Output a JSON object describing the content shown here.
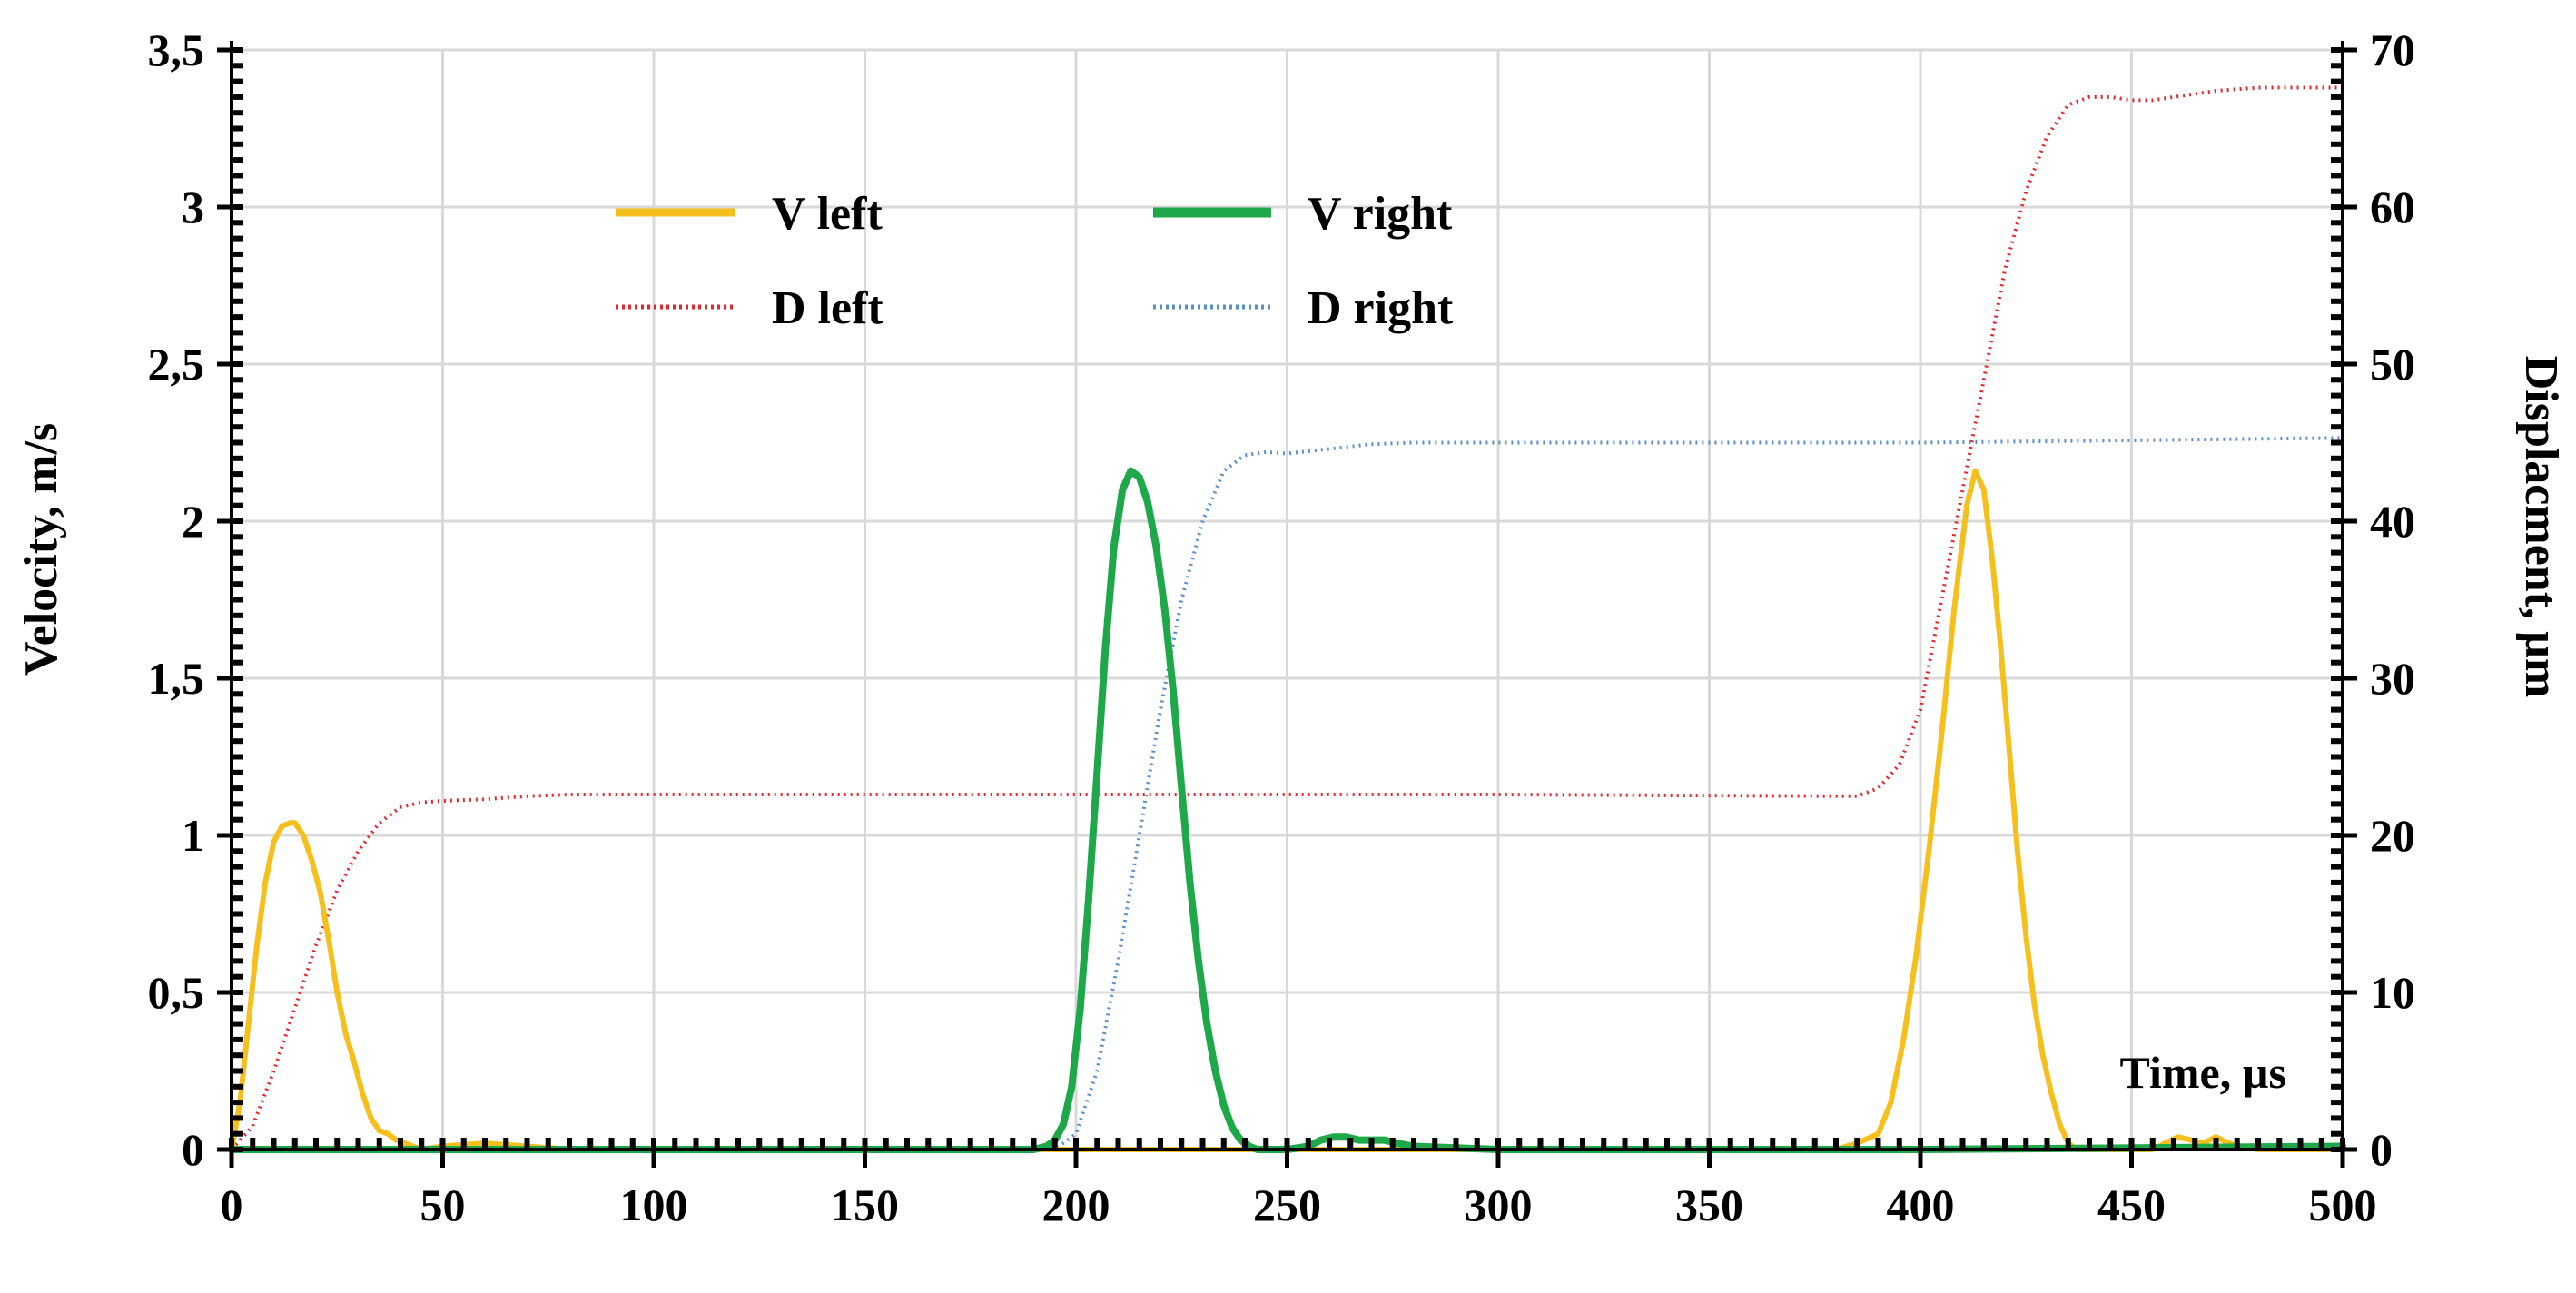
{
  "chart_data": {
    "type": "line",
    "title": "",
    "xlabel": "",
    "ylabel": "Velocity, m/s",
    "y2label": "Displacment, µm",
    "annotation": "Time, µs",
    "xlim": [
      0,
      500
    ],
    "ylim": [
      0,
      3.5
    ],
    "y2lim": [
      0,
      70
    ],
    "x_ticks": [
      0,
      50,
      100,
      150,
      200,
      250,
      300,
      350,
      400,
      450,
      500
    ],
    "x_tick_labels": [
      "0",
      "50",
      "100",
      "150",
      "200",
      "250",
      "300",
      "350",
      "400",
      "450",
      "500"
    ],
    "y_ticks": [
      0,
      0.5,
      1,
      1.5,
      2,
      2.5,
      3,
      3.5
    ],
    "y_tick_labels": [
      "0",
      "0,5",
      "1",
      "1,5",
      "2",
      "2,5",
      "3",
      "3,5"
    ],
    "y2_ticks": [
      0,
      10,
      20,
      30,
      40,
      50,
      60,
      70
    ],
    "y2_tick_labels": [
      "0",
      "10",
      "20",
      "30",
      "40",
      "50",
      "60",
      "70"
    ],
    "grid": true,
    "legend_position": "top-left",
    "series": [
      {
        "name": "V left",
        "axis": "left",
        "style": "solid",
        "color": "#f5c01e",
        "x": [
          0,
          2,
          4,
          6,
          8,
          10,
          12,
          14,
          15,
          17,
          19,
          21,
          23,
          25,
          27,
          29,
          31,
          33,
          35,
          37,
          39,
          41,
          43,
          45,
          50,
          60,
          70,
          80,
          90,
          100,
          200,
          300,
          380,
          385,
          390,
          393,
          396,
          399,
          402,
          405,
          408,
          411,
          413,
          415,
          417,
          419,
          421,
          423,
          425,
          427,
          429,
          431,
          433,
          435,
          437,
          440,
          455,
          458,
          461,
          464,
          467,
          470,
          473,
          476,
          480,
          500
        ],
        "y": [
          0,
          0.15,
          0.4,
          0.65,
          0.85,
          0.98,
          1.03,
          1.04,
          1.04,
          1.0,
          0.92,
          0.82,
          0.67,
          0.5,
          0.37,
          0.28,
          0.18,
          0.1,
          0.06,
          0.05,
          0.03,
          0.02,
          0.01,
          0.0,
          0.01,
          0.02,
          0.01,
          0.0,
          0.0,
          0.0,
          0.0,
          0.0,
          0.0,
          0.02,
          0.05,
          0.15,
          0.35,
          0.62,
          0.95,
          1.32,
          1.72,
          2.05,
          2.16,
          2.1,
          1.88,
          1.6,
          1.28,
          0.95,
          0.68,
          0.46,
          0.3,
          0.18,
          0.08,
          0.02,
          0.0,
          0.0,
          0.0,
          0.02,
          0.04,
          0.03,
          0.02,
          0.04,
          0.02,
          0.01,
          0.0,
          0.0
        ]
      },
      {
        "name": "V right",
        "axis": "left",
        "style": "solid",
        "color": "#1ea84a",
        "x": [
          0,
          100,
          190,
          193,
          195,
          197,
          199,
          201,
          203,
          205,
          207,
          209,
          211,
          213,
          215,
          217,
          219,
          221,
          223,
          225,
          227,
          229,
          231,
          233,
          235,
          237,
          239,
          241,
          243,
          245,
          250,
          255,
          258,
          261,
          264,
          267,
          270,
          273,
          276,
          280,
          300,
          400,
          500
        ],
        "y": [
          0,
          0,
          0,
          0.01,
          0.03,
          0.08,
          0.2,
          0.45,
          0.8,
          1.2,
          1.6,
          1.92,
          2.1,
          2.16,
          2.14,
          2.06,
          1.92,
          1.72,
          1.46,
          1.15,
          0.85,
          0.6,
          0.4,
          0.25,
          0.14,
          0.07,
          0.03,
          0.01,
          0.0,
          0.0,
          0.0,
          0.01,
          0.03,
          0.04,
          0.04,
          0.03,
          0.03,
          0.03,
          0.02,
          0.01,
          0.0,
          0.0,
          0.01
        ]
      },
      {
        "name": "D left",
        "axis": "right",
        "style": "dotted",
        "color": "#e0282e",
        "x": [
          0,
          5,
          10,
          15,
          20,
          25,
          30,
          35,
          40,
          45,
          50,
          60,
          70,
          80,
          100,
          200,
          300,
          380,
          385,
          390,
          395,
          400,
          405,
          410,
          415,
          420,
          425,
          430,
          435,
          440,
          445,
          450,
          455,
          460,
          465,
          470,
          480,
          490,
          500
        ],
        "y": [
          0,
          1.5,
          5,
          9,
          13,
          16.5,
          19,
          20.8,
          21.8,
          22.1,
          22.2,
          22.3,
          22.5,
          22.6,
          22.6,
          22.6,
          22.6,
          22.5,
          22.5,
          23.0,
          24.5,
          28,
          35,
          42,
          49,
          56,
          61,
          64.5,
          66.5,
          67,
          67,
          66.8,
          66.8,
          67,
          67.2,
          67.4,
          67.6,
          67.6,
          67.6
        ]
      },
      {
        "name": "D right",
        "axis": "right",
        "style": "dotted",
        "color": "#5a8fc8",
        "x": [
          0,
          100,
          195,
          200,
          205,
          210,
          215,
          220,
          225,
          230,
          235,
          240,
          245,
          250,
          260,
          270,
          280,
          300,
          400,
          500
        ],
        "y": [
          0,
          0,
          0,
          1,
          5,
          12,
          20,
          28,
          35,
          40,
          43.2,
          44.2,
          44.4,
          44.3,
          44.6,
          44.9,
          45,
          45,
          45,
          45.3
        ]
      }
    ]
  }
}
